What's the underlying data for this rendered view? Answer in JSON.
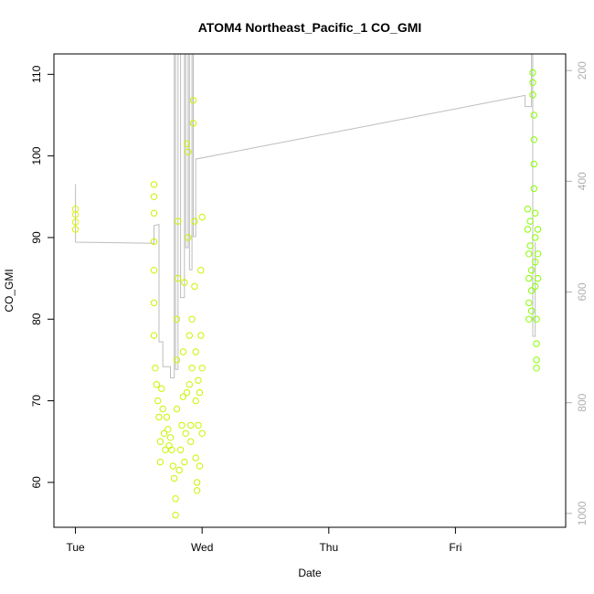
{
  "chart_data": {
    "type": "scatter",
    "title": "ATOM4 Northeast_Pacific_1 CO_GMI",
    "xlabel": "Date",
    "ylabel": "CO_GMI",
    "x_tick_labels": [
      "Tue",
      "Wed",
      "Thu",
      "Fri"
    ],
    "x_ticks": [
      0,
      1,
      2,
      3
    ],
    "xlim": [
      -0.17,
      3.87
    ],
    "ylim": [
      54.5,
      112.5
    ],
    "y_ticks": [
      60,
      70,
      80,
      90,
      100,
      110
    ],
    "y2_ticks": [
      200,
      400,
      600,
      800,
      1000
    ],
    "y2lim": [
      1025,
      170
    ],
    "point_colors": {
      "early": "#d9f500",
      "mid": "#c8f500",
      "late": "#88ff00"
    },
    "secondary_line_color": "#bdbdbd",
    "series": [
      {
        "points": [
          {
            "x": 0.0,
            "y": 93.5
          },
          {
            "x": 0.0,
            "y": 92.8
          },
          {
            "x": 0.0,
            "y": 91.9
          },
          {
            "x": 0.0,
            "y": 91.0
          },
          {
            "x": 0.62,
            "y": 96.5
          },
          {
            "x": 0.62,
            "y": 95.0
          },
          {
            "x": 0.62,
            "y": 93.0
          },
          {
            "x": 0.62,
            "y": 89.5
          },
          {
            "x": 0.62,
            "y": 86.0
          },
          {
            "x": 0.62,
            "y": 82.0
          },
          {
            "x": 0.62,
            "y": 78.0
          },
          {
            "x": 0.63,
            "y": 74.0
          },
          {
            "x": 0.64,
            "y": 72.0
          },
          {
            "x": 0.65,
            "y": 70.0
          },
          {
            "x": 0.66,
            "y": 68.0
          },
          {
            "x": 0.67,
            "y": 65.0
          },
          {
            "x": 0.67,
            "y": 62.5
          },
          {
            "x": 0.68,
            "y": 71.5
          },
          {
            "x": 0.69,
            "y": 69.0
          },
          {
            "x": 0.7,
            "y": 66.0
          },
          {
            "x": 0.71,
            "y": 64.0
          },
          {
            "x": 0.72,
            "y": 68.0
          },
          {
            "x": 0.73,
            "y": 66.5
          },
          {
            "x": 0.74,
            "y": 64.5
          },
          {
            "x": 0.75,
            "y": 65.5
          },
          {
            "x": 0.76,
            "y": 64.0
          },
          {
            "x": 0.77,
            "y": 62.0
          },
          {
            "x": 0.78,
            "y": 60.5
          },
          {
            "x": 0.79,
            "y": 58.0
          },
          {
            "x": 0.79,
            "y": 56.0
          },
          {
            "x": 0.8,
            "y": 69.0
          },
          {
            "x": 0.8,
            "y": 75.0
          },
          {
            "x": 0.8,
            "y": 80.0
          },
          {
            "x": 0.81,
            "y": 85.0
          },
          {
            "x": 0.81,
            "y": 92.0
          },
          {
            "x": 0.82,
            "y": 61.5
          },
          {
            "x": 0.83,
            "y": 64.0
          },
          {
            "x": 0.84,
            "y": 67.0
          },
          {
            "x": 0.85,
            "y": 70.5
          },
          {
            "x": 0.85,
            "y": 76.0
          },
          {
            "x": 0.86,
            "y": 84.5
          },
          {
            "x": 0.86,
            "y": 62.5
          },
          {
            "x": 0.87,
            "y": 66.0
          },
          {
            "x": 0.88,
            "y": 71.0
          },
          {
            "x": 0.88,
            "y": 101.5
          },
          {
            "x": 0.89,
            "y": 100.5
          },
          {
            "x": 0.89,
            "y": 90.0
          },
          {
            "x": 0.9,
            "y": 78.0
          },
          {
            "x": 0.9,
            "y": 72.0
          },
          {
            "x": 0.91,
            "y": 67.0
          },
          {
            "x": 0.91,
            "y": 65.0
          },
          {
            "x": 0.92,
            "y": 74.0
          },
          {
            "x": 0.92,
            "y": 80.0
          },
          {
            "x": 0.93,
            "y": 106.8
          },
          {
            "x": 0.93,
            "y": 104.0
          },
          {
            "x": 0.94,
            "y": 92.0
          },
          {
            "x": 0.94,
            "y": 84.0
          },
          {
            "x": 0.95,
            "y": 76.0
          },
          {
            "x": 0.95,
            "y": 70.0
          },
          {
            "x": 0.95,
            "y": 63.0
          },
          {
            "x": 0.96,
            "y": 60.0
          },
          {
            "x": 0.96,
            "y": 59.0
          },
          {
            "x": 0.97,
            "y": 67.0
          },
          {
            "x": 0.97,
            "y": 72.5
          },
          {
            "x": 0.98,
            "y": 62.0
          },
          {
            "x": 0.98,
            "y": 71.0
          },
          {
            "x": 0.99,
            "y": 78.0
          },
          {
            "x": 0.99,
            "y": 86.0
          },
          {
            "x": 1.0,
            "y": 92.5
          },
          {
            "x": 1.0,
            "y": 74.0
          },
          {
            "x": 1.0,
            "y": 66.0
          },
          {
            "x": 3.57,
            "y": 93.5
          },
          {
            "x": 3.57,
            "y": 91.0
          },
          {
            "x": 3.58,
            "y": 88.0
          },
          {
            "x": 3.58,
            "y": 85.0
          },
          {
            "x": 3.58,
            "y": 82.0
          },
          {
            "x": 3.58,
            "y": 80.0
          },
          {
            "x": 3.59,
            "y": 92.0
          },
          {
            "x": 3.59,
            "y": 89.0
          },
          {
            "x": 3.6,
            "y": 86.0
          },
          {
            "x": 3.6,
            "y": 83.5
          },
          {
            "x": 3.6,
            "y": 81.0
          },
          {
            "x": 3.61,
            "y": 110.2
          },
          {
            "x": 3.61,
            "y": 109.0
          },
          {
            "x": 3.61,
            "y": 107.5
          },
          {
            "x": 3.62,
            "y": 105.0
          },
          {
            "x": 3.62,
            "y": 102.0
          },
          {
            "x": 3.62,
            "y": 99.0
          },
          {
            "x": 3.62,
            "y": 96.0
          },
          {
            "x": 3.63,
            "y": 93.0
          },
          {
            "x": 3.63,
            "y": 90.0
          },
          {
            "x": 3.63,
            "y": 87.0
          },
          {
            "x": 3.63,
            "y": 84.0
          },
          {
            "x": 3.64,
            "y": 80.0
          },
          {
            "x": 3.64,
            "y": 77.0
          },
          {
            "x": 3.64,
            "y": 75.0
          },
          {
            "x": 3.64,
            "y": 74.0
          },
          {
            "x": 3.65,
            "y": 91.0
          },
          {
            "x": 3.65,
            "y": 88.0
          },
          {
            "x": 3.65,
            "y": 85.0
          }
        ]
      }
    ],
    "secondary_line": [
      {
        "x": 0.0,
        "y2": 405
      },
      {
        "x": 0.0,
        "y2": 510
      },
      {
        "x": 0.62,
        "y2": 512
      },
      {
        "x": 0.62,
        "y2": 480
      },
      {
        "x": 0.66,
        "y2": 478
      },
      {
        "x": 0.66,
        "y2": 690
      },
      {
        "x": 0.69,
        "y2": 690
      },
      {
        "x": 0.69,
        "y2": 735
      },
      {
        "x": 0.75,
        "y2": 735
      },
      {
        "x": 0.75,
        "y2": 755
      },
      {
        "x": 0.78,
        "y2": 755
      },
      {
        "x": 0.78,
        "y2": 170
      },
      {
        "x": 0.79,
        "y2": 170
      },
      {
        "x": 0.79,
        "y2": 740
      },
      {
        "x": 0.81,
        "y2": 740
      },
      {
        "x": 0.81,
        "y2": 170
      },
      {
        "x": 0.83,
        "y2": 170
      },
      {
        "x": 0.83,
        "y2": 610
      },
      {
        "x": 0.86,
        "y2": 610
      },
      {
        "x": 0.86,
        "y2": 170
      },
      {
        "x": 0.87,
        "y2": 170
      },
      {
        "x": 0.87,
        "y2": 520
      },
      {
        "x": 0.89,
        "y2": 520
      },
      {
        "x": 0.89,
        "y2": 170
      },
      {
        "x": 0.9,
        "y2": 170
      },
      {
        "x": 0.9,
        "y2": 560
      },
      {
        "x": 0.92,
        "y2": 560
      },
      {
        "x": 0.92,
        "y2": 170
      },
      {
        "x": 0.93,
        "y2": 170
      },
      {
        "x": 0.93,
        "y2": 500
      },
      {
        "x": 0.95,
        "y2": 500
      },
      {
        "x": 0.95,
        "y2": 360
      },
      {
        "x": 3.55,
        "y2": 245
      },
      {
        "x": 3.55,
        "y2": 265
      },
      {
        "x": 3.6,
        "y2": 265
      },
      {
        "x": 3.6,
        "y2": 170
      },
      {
        "x": 3.61,
        "y2": 170
      },
      {
        "x": 3.61,
        "y2": 680
      },
      {
        "x": 3.63,
        "y2": 680
      },
      {
        "x": 3.63,
        "y2": 510
      }
    ]
  }
}
